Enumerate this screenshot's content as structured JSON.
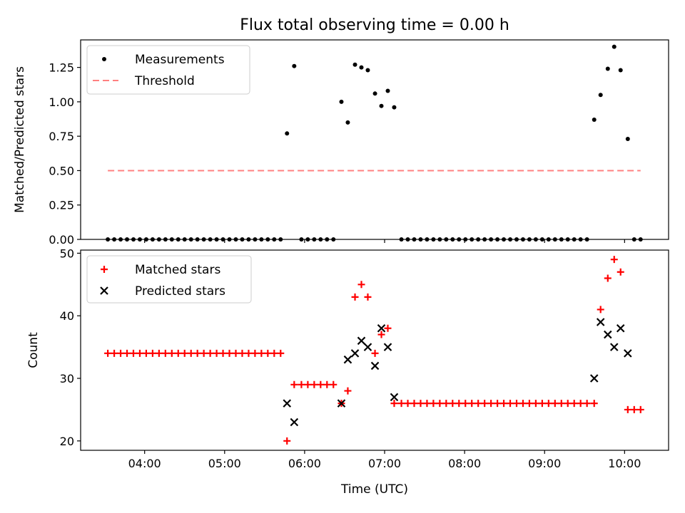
{
  "title": "Flux total observing time = 0.00 h",
  "xlabel": "Time (UTC)",
  "x_ticks": [
    "04:00",
    "05:00",
    "06:00",
    "07:00",
    "08:00",
    "09:00",
    "10:00"
  ],
  "x_tick_hours": [
    4,
    5,
    6,
    7,
    8,
    9,
    10
  ],
  "xlim": [
    3.2,
    10.55
  ],
  "chart_data": [
    {
      "type": "scatter",
      "ylabel": "Matched/Predicted stars",
      "ylim": [
        0,
        1.45
      ],
      "y_ticks": [
        0,
        0.25,
        0.5,
        0.75,
        1.0,
        1.25
      ],
      "y_tick_labels": [
        "0.00",
        "0.25",
        "0.50",
        "0.75",
        "1.00",
        "1.25"
      ],
      "legend_position": "upper-left",
      "series": [
        {
          "name": "Measurements",
          "marker": "dot",
          "color": "#000000",
          "points": [
            [
              3.54,
              0
            ],
            [
              3.62,
              0
            ],
            [
              3.7,
              0
            ],
            [
              3.78,
              0
            ],
            [
              3.86,
              0
            ],
            [
              3.94,
              0
            ],
            [
              4.02,
              0
            ],
            [
              4.1,
              0
            ],
            [
              4.18,
              0
            ],
            [
              4.26,
              0
            ],
            [
              4.34,
              0
            ],
            [
              4.42,
              0
            ],
            [
              4.5,
              0
            ],
            [
              4.58,
              0
            ],
            [
              4.66,
              0
            ],
            [
              4.74,
              0
            ],
            [
              4.82,
              0
            ],
            [
              4.9,
              0
            ],
            [
              4.98,
              0
            ],
            [
              5.06,
              0
            ],
            [
              5.14,
              0
            ],
            [
              5.22,
              0
            ],
            [
              5.3,
              0
            ],
            [
              5.38,
              0
            ],
            [
              5.46,
              0
            ],
            [
              5.54,
              0
            ],
            [
              5.62,
              0
            ],
            [
              5.7,
              0
            ],
            [
              5.78,
              0.77
            ],
            [
              5.87,
              1.26
            ],
            [
              5.96,
              0
            ],
            [
              6.04,
              0
            ],
            [
              6.12,
              0
            ],
            [
              6.2,
              0
            ],
            [
              6.28,
              0
            ],
            [
              6.36,
              0
            ],
            [
              6.46,
              1.0
            ],
            [
              6.54,
              0.85
            ],
            [
              6.63,
              1.27
            ],
            [
              6.71,
              1.25
            ],
            [
              6.79,
              1.23
            ],
            [
              6.88,
              1.06
            ],
            [
              6.96,
              0.97
            ],
            [
              7.04,
              1.08
            ],
            [
              7.12,
              0.96
            ],
            [
              7.21,
              0
            ],
            [
              7.29,
              0
            ],
            [
              7.37,
              0
            ],
            [
              7.45,
              0
            ],
            [
              7.53,
              0
            ],
            [
              7.61,
              0
            ],
            [
              7.69,
              0
            ],
            [
              7.77,
              0
            ],
            [
              7.85,
              0
            ],
            [
              7.93,
              0
            ],
            [
              8.01,
              0
            ],
            [
              8.09,
              0
            ],
            [
              8.17,
              0
            ],
            [
              8.25,
              0
            ],
            [
              8.33,
              0
            ],
            [
              8.41,
              0
            ],
            [
              8.49,
              0
            ],
            [
              8.57,
              0
            ],
            [
              8.65,
              0
            ],
            [
              8.73,
              0
            ],
            [
              8.81,
              0
            ],
            [
              8.89,
              0
            ],
            [
              8.97,
              0
            ],
            [
              9.05,
              0
            ],
            [
              9.13,
              0
            ],
            [
              9.21,
              0
            ],
            [
              9.29,
              0
            ],
            [
              9.37,
              0
            ],
            [
              9.45,
              0
            ],
            [
              9.53,
              0
            ],
            [
              9.62,
              0.87
            ],
            [
              9.7,
              1.05
            ],
            [
              9.79,
              1.24
            ],
            [
              9.87,
              1.4
            ],
            [
              9.95,
              1.23
            ],
            [
              10.04,
              0.73
            ],
            [
              10.12,
              0
            ],
            [
              10.2,
              0
            ]
          ]
        },
        {
          "name": "Threshold",
          "marker": "dashed-line",
          "color": "#ff8080",
          "points": [
            [
              3.54,
              0.5
            ],
            [
              10.2,
              0.5
            ]
          ]
        }
      ]
    },
    {
      "type": "scatter",
      "ylabel": "Count",
      "ylim": [
        18.5,
        50.5
      ],
      "y_ticks": [
        20,
        30,
        40,
        50
      ],
      "y_tick_labels": [
        "20",
        "30",
        "40",
        "50"
      ],
      "legend_position": "upper-left",
      "series": [
        {
          "name": "Matched stars",
          "marker": "plus",
          "color": "#ff0000",
          "points": [
            [
              3.54,
              34
            ],
            [
              3.62,
              34
            ],
            [
              3.7,
              34
            ],
            [
              3.78,
              34
            ],
            [
              3.86,
              34
            ],
            [
              3.94,
              34
            ],
            [
              4.02,
              34
            ],
            [
              4.1,
              34
            ],
            [
              4.18,
              34
            ],
            [
              4.26,
              34
            ],
            [
              4.34,
              34
            ],
            [
              4.42,
              34
            ],
            [
              4.5,
              34
            ],
            [
              4.58,
              34
            ],
            [
              4.66,
              34
            ],
            [
              4.74,
              34
            ],
            [
              4.82,
              34
            ],
            [
              4.9,
              34
            ],
            [
              4.98,
              34
            ],
            [
              5.06,
              34
            ],
            [
              5.14,
              34
            ],
            [
              5.22,
              34
            ],
            [
              5.3,
              34
            ],
            [
              5.38,
              34
            ],
            [
              5.46,
              34
            ],
            [
              5.54,
              34
            ],
            [
              5.62,
              34
            ],
            [
              5.7,
              34
            ],
            [
              5.78,
              20
            ],
            [
              5.87,
              29
            ],
            [
              5.96,
              29
            ],
            [
              6.04,
              29
            ],
            [
              6.12,
              29
            ],
            [
              6.2,
              29
            ],
            [
              6.28,
              29
            ],
            [
              6.36,
              29
            ],
            [
              6.46,
              26
            ],
            [
              6.54,
              28
            ],
            [
              6.63,
              43
            ],
            [
              6.71,
              45
            ],
            [
              6.79,
              43
            ],
            [
              6.88,
              34
            ],
            [
              6.96,
              37
            ],
            [
              7.04,
              38
            ],
            [
              7.12,
              26
            ],
            [
              7.21,
              26
            ],
            [
              7.29,
              26
            ],
            [
              7.37,
              26
            ],
            [
              7.45,
              26
            ],
            [
              7.53,
              26
            ],
            [
              7.61,
              26
            ],
            [
              7.69,
              26
            ],
            [
              7.77,
              26
            ],
            [
              7.85,
              26
            ],
            [
              7.93,
              26
            ],
            [
              8.01,
              26
            ],
            [
              8.09,
              26
            ],
            [
              8.17,
              26
            ],
            [
              8.25,
              26
            ],
            [
              8.33,
              26
            ],
            [
              8.41,
              26
            ],
            [
              8.49,
              26
            ],
            [
              8.57,
              26
            ],
            [
              8.65,
              26
            ],
            [
              8.73,
              26
            ],
            [
              8.81,
              26
            ],
            [
              8.89,
              26
            ],
            [
              8.97,
              26
            ],
            [
              9.05,
              26
            ],
            [
              9.13,
              26
            ],
            [
              9.21,
              26
            ],
            [
              9.29,
              26
            ],
            [
              9.37,
              26
            ],
            [
              9.45,
              26
            ],
            [
              9.53,
              26
            ],
            [
              9.62,
              26
            ],
            [
              9.7,
              41
            ],
            [
              9.79,
              46
            ],
            [
              9.87,
              49
            ],
            [
              9.95,
              47
            ],
            [
              10.04,
              25
            ],
            [
              10.12,
              25
            ],
            [
              10.2,
              25
            ]
          ]
        },
        {
          "name": "Predicted stars",
          "marker": "x",
          "color": "#000000",
          "points": [
            [
              5.78,
              26
            ],
            [
              5.87,
              23
            ],
            [
              6.46,
              26
            ],
            [
              6.54,
              33
            ],
            [
              6.63,
              34
            ],
            [
              6.71,
              36
            ],
            [
              6.79,
              35
            ],
            [
              6.88,
              32
            ],
            [
              6.96,
              38
            ],
            [
              7.04,
              35
            ],
            [
              7.12,
              27
            ],
            [
              9.62,
              30
            ],
            [
              9.7,
              39
            ],
            [
              9.79,
              37
            ],
            [
              9.87,
              35
            ],
            [
              9.95,
              38
            ],
            [
              10.04,
              34
            ]
          ]
        }
      ]
    }
  ]
}
